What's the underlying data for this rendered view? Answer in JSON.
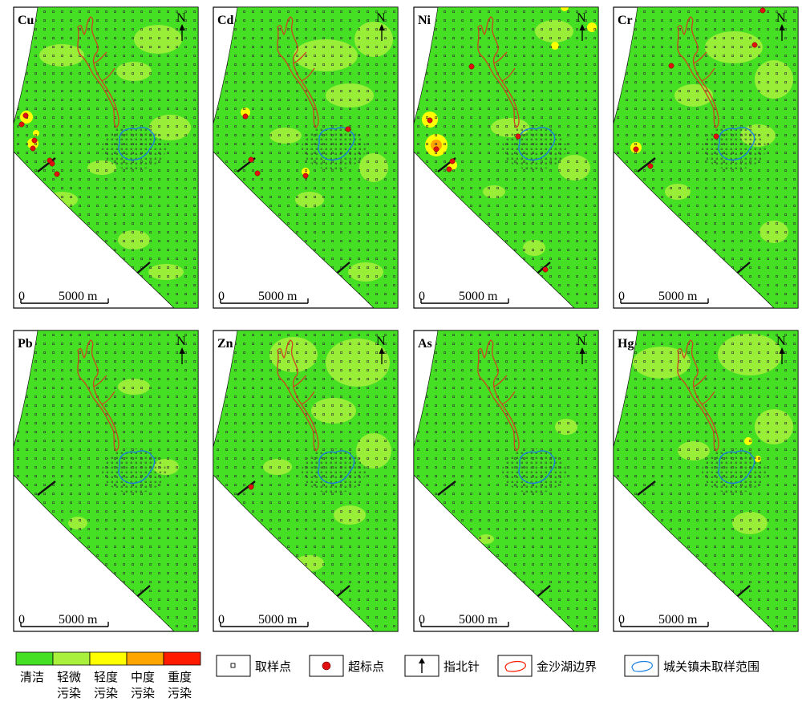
{
  "panels": [
    {
      "label": "Cu",
      "north_label": "N",
      "scale_label": "5000 m",
      "scale_zero": "0"
    },
    {
      "label": "Cd",
      "north_label": "N",
      "scale_label": "5000 m",
      "scale_zero": "0"
    },
    {
      "label": "Ni",
      "north_label": "N",
      "scale_label": "5000 m",
      "scale_zero": "0"
    },
    {
      "label": "Cr",
      "north_label": "N",
      "scale_label": "5000 m",
      "scale_zero": "0"
    },
    {
      "label": "Pb",
      "north_label": "N",
      "scale_label": "5000 m",
      "scale_zero": "0"
    },
    {
      "label": "Zn",
      "north_label": "N",
      "scale_label": "5000 m",
      "scale_zero": "0"
    },
    {
      "label": "As",
      "north_label": "N",
      "scale_label": "5000 m",
      "scale_zero": "0"
    },
    {
      "label": "Hg",
      "north_label": "N",
      "scale_label": "5000 m",
      "scale_zero": "0"
    }
  ],
  "legend": {
    "classes": [
      {
        "line1": "清洁",
        "line2": "",
        "color": "#45e024"
      },
      {
        "line1": "轻微",
        "line2": "污染",
        "color": "#a8f03c"
      },
      {
        "line1": "轻度",
        "line2": "污染",
        "color": "#ffff00"
      },
      {
        "line1": "中度",
        "line2": "污染",
        "color": "#ffa500"
      },
      {
        "line1": "重度",
        "line2": "污染",
        "color": "#ff1a00"
      }
    ],
    "symbols": [
      {
        "label": "取样点",
        "icon": "sample-point-icon"
      },
      {
        "label": "超标点",
        "icon": "exceed-point-icon"
      },
      {
        "label": "指北针",
        "icon": "north-arrow-icon"
      },
      {
        "label": "金沙湖边界",
        "icon": "lake-boundary-icon"
      },
      {
        "label": "城关镇未取样范围",
        "icon": "unsampled-area-icon"
      }
    ]
  },
  "colors": {
    "clean": "#45e024",
    "slight": "#a8f03c",
    "light": "#ffff00",
    "moderate": "#ffa500",
    "heavy": "#ff1a00",
    "lake_boundary": "#cc4422",
    "unsampled_boundary": "#1a7fe0",
    "exceed_point": "#e01010"
  }
}
